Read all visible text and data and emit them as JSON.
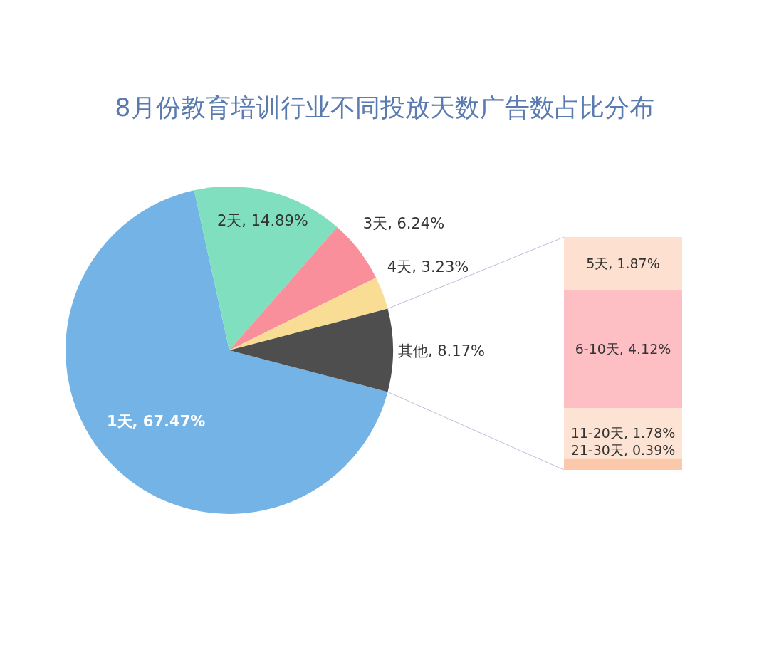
{
  "chart_data": [
    {
      "type": "pie",
      "title": "8月份教育培训行业不同投放天数广告数占比分布",
      "categories": [
        "1天",
        "2天",
        "3天",
        "4天",
        "其他"
      ],
      "values": [
        67.47,
        14.89,
        6.24,
        3.23,
        8.17
      ],
      "value_labels": [
        "67.47%",
        "14.89%",
        "6.24%",
        "3.23%",
        "8.17%"
      ],
      "colors": [
        "#74b3e6",
        "#7fdfbe",
        "#f98f9a",
        "#f9dd95",
        "#4e4e4e"
      ]
    },
    {
      "type": "bar",
      "stacked": true,
      "categories": [
        null
      ],
      "series": [
        {
          "color": "#fbc9a9",
          "values": [
            0.39
          ],
          "value_labels": [
            "21-30天, 0.39%"
          ]
        },
        {
          "color": "#fde3d3",
          "values": [
            1.78
          ],
          "value_labels": [
            "11-20天, 1.78%"
          ]
        },
        {
          "color": "#fdbfc4",
          "values": [
            4.12
          ],
          "value_labels": [
            "6-10天, 4.12%"
          ]
        },
        {
          "color": "#fde0d0",
          "values": [
            1.87
          ],
          "value_labels": [
            "5天, 1.87%"
          ]
        }
      ]
    }
  ]
}
